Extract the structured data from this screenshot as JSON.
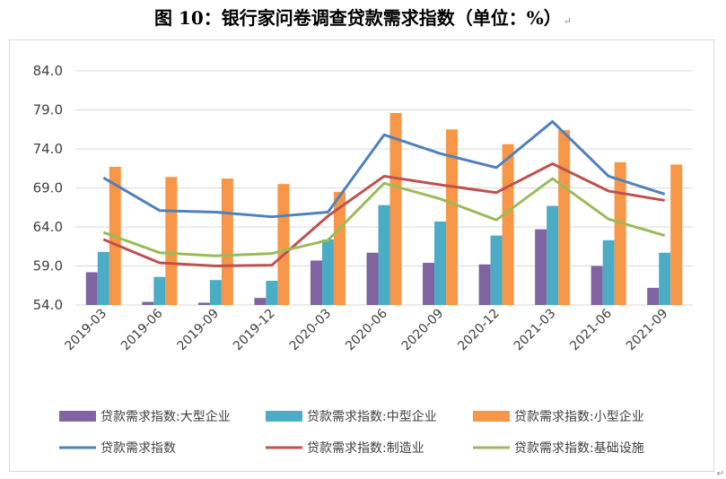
{
  "page": {
    "title": "图 10：银行家问卷调查贷款需求指数（单位：%）"
  },
  "colors": {
    "large": "#8064A2",
    "medium": "#4BACC6",
    "small": "#F79646",
    "total": "#4F81BD",
    "manufacturing": "#C0504D",
    "infrastructure": "#9BBB59",
    "grid": "#d9d9d9"
  },
  "chart_data": {
    "type": "bar",
    "title": "图 10：银行家问卷调查贷款需求指数（单位：%）",
    "categories": [
      "2019-03",
      "2019-06",
      "2019-09",
      "2019-12",
      "2020-03",
      "2020-06",
      "2020-09",
      "2020-12",
      "2021-03",
      "2021-06",
      "2021-09"
    ],
    "ylim": [
      54.0,
      84.0
    ],
    "yticks": [
      "54.0",
      "59.0",
      "64.0",
      "69.0",
      "74.0",
      "79.0",
      "84.0"
    ],
    "grid": true,
    "legend_position": "bottom",
    "bar_series": [
      {
        "name": "贷款需求指数:大型企业",
        "color_key": "large",
        "values": [
          58.2,
          54.4,
          54.3,
          54.9,
          59.7,
          60.7,
          59.4,
          59.2,
          63.7,
          59.0,
          56.2
        ]
      },
      {
        "name": "贷款需求指数:中型企业",
        "color_key": "medium",
        "values": [
          60.8,
          57.6,
          57.2,
          57.1,
          62.4,
          66.8,
          64.7,
          62.9,
          66.7,
          62.3,
          60.7
        ]
      },
      {
        "name": "贷款需求指数:小型企业",
        "color_key": "small",
        "values": [
          71.7,
          70.4,
          70.2,
          69.5,
          68.5,
          78.6,
          76.5,
          74.6,
          76.4,
          72.3,
          72.0
        ]
      }
    ],
    "line_series": [
      {
        "name": "贷款需求指数",
        "color_key": "total",
        "values": [
          70.3,
          66.1,
          65.9,
          65.3,
          65.9,
          75.8,
          73.4,
          71.6,
          77.5,
          70.5,
          68.2
        ]
      },
      {
        "name": "贷款需求指数:制造业",
        "color_key": "manufacturing",
        "values": [
          62.4,
          59.4,
          59.0,
          59.1,
          65.4,
          70.5,
          69.4,
          68.4,
          72.1,
          68.6,
          67.4
        ]
      },
      {
        "name": "贷款需求指数:基础设施",
        "color_key": "infrastructure",
        "values": [
          63.3,
          60.7,
          60.3,
          60.6,
          62.3,
          69.6,
          67.6,
          64.9,
          70.2,
          65.0,
          62.9
        ]
      }
    ]
  }
}
